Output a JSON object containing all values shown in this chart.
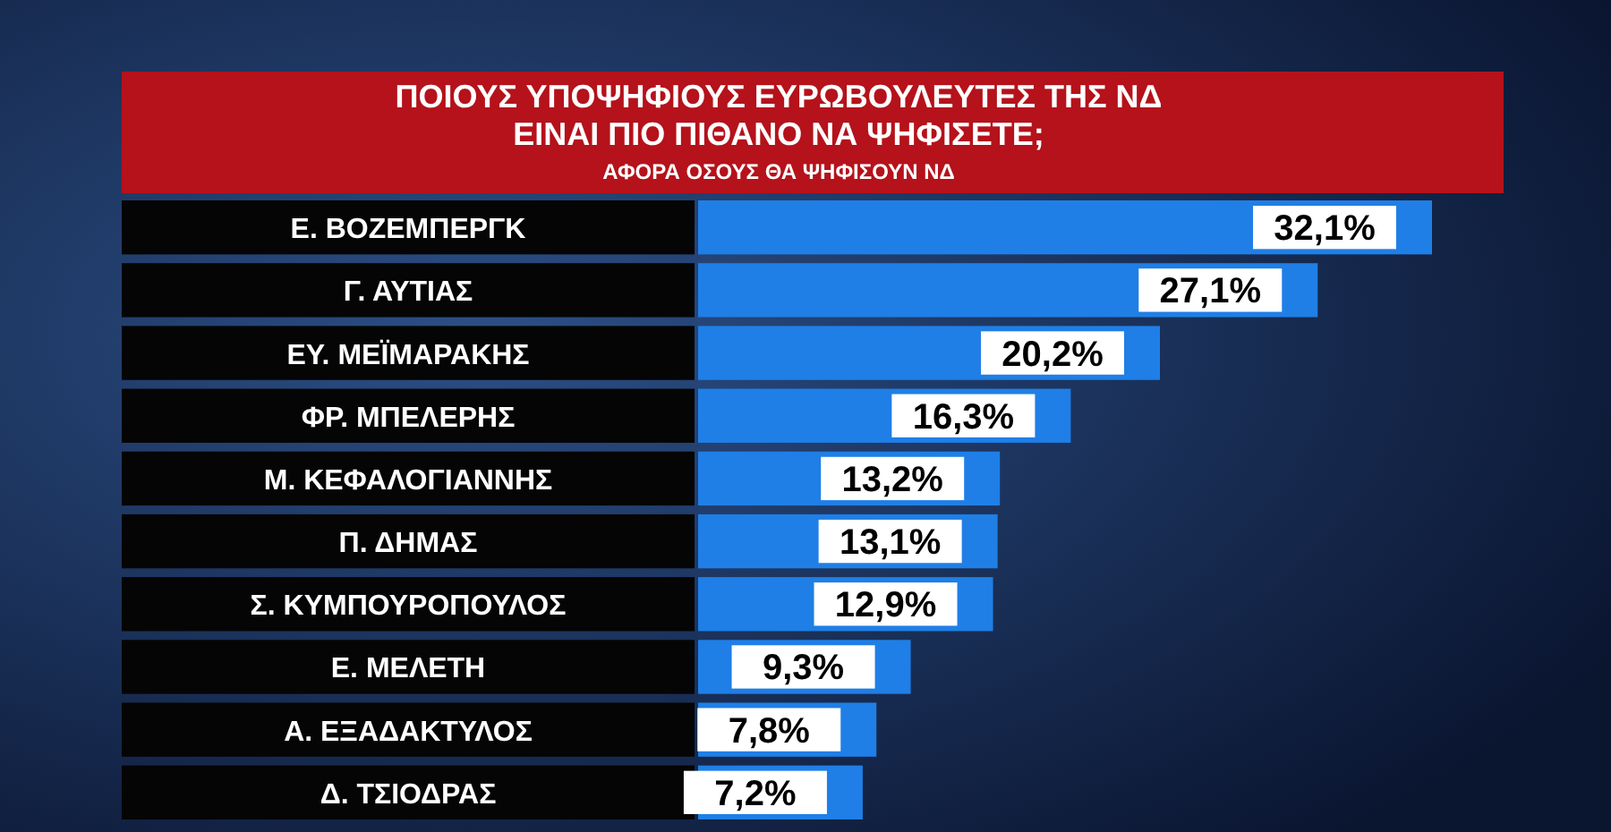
{
  "chart_data": {
    "type": "bar",
    "orientation": "horizontal",
    "title": "ΠΟΙΟΥΣ ΥΠΟΨΗΦΙΟΥΣ ΕΥΡΩΒΟΥΛΕΥΤΕΣ ΤΗΣ ΝΔ\nΕΙΝΑΙ ΠΙΟ ΠΙΘΑΝΟ ΝΑ ΨΗΦΙΣΕΤΕ;",
    "subtitle": "ΑΦΟΡΑ ΟΣΟΥΣ ΘΑ ΨΗΦΙΣΟΥΝ ΝΔ",
    "categories": [
      "Ε. ΒΟΖΕΜΠΕΡΓΚ",
      "Γ. ΑΥΤΙΑΣ",
      "ΕΥ. ΜΕΪΜΑΡΑΚΗΣ",
      "ΦΡ. ΜΠΕΛΕΡΗΣ",
      "Μ. ΚΕΦΑΛΟΓΙΑΝΝΗΣ",
      "Π. ΔΗΜΑΣ",
      "Σ. ΚΥΜΠΟΥΡΟΠΟΥΛΟΣ",
      "Ε. ΜΕΛΕΤΗ",
      "Α. ΕΞΑΔΑΚΤΥΛΟΣ",
      "Δ. ΤΣΙΟΔΡΑΣ"
    ],
    "values": [
      32.1,
      27.1,
      20.2,
      16.3,
      13.2,
      13.1,
      12.9,
      9.3,
      7.8,
      7.2
    ],
    "value_labels": [
      "32,1%",
      "27,1%",
      "20,2%",
      "16,3%",
      "13,2%",
      "13,1%",
      "12,9%",
      "9,3%",
      "7,8%",
      "7,2%"
    ],
    "color": "#1f7fe6",
    "tick_labels": "y"
  }
}
